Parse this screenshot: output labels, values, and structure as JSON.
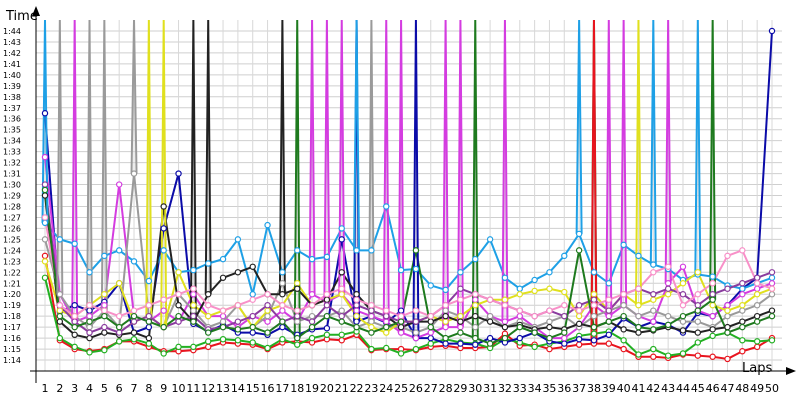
{
  "chart_data": {
    "type": "line",
    "ylabel": "Time",
    "xlabel": "Laps",
    "x": [
      1,
      2,
      3,
      4,
      5,
      6,
      7,
      8,
      9,
      10,
      11,
      12,
      13,
      14,
      15,
      16,
      17,
      18,
      19,
      20,
      21,
      22,
      23,
      24,
      25,
      26,
      27,
      28,
      29,
      30,
      31,
      32,
      33,
      34,
      35,
      36,
      37,
      38,
      39,
      40,
      41,
      42,
      43,
      44,
      45,
      46,
      47,
      48,
      49,
      50
    ],
    "xlim": [
      1,
      50
    ],
    "ylim": [
      73,
      105
    ],
    "ylim_labels": "1:13 to 1:45 (seconds as m:ss)",
    "y_ticks": [
      "1:14",
      "1:15",
      "1:16",
      "1:17",
      "1:18",
      "1:19",
      "1:20",
      "1:21",
      "1:22",
      "1:23",
      "1:24",
      "1:25",
      "1:26",
      "1:27",
      "1:28",
      "1:29",
      "1:30",
      "1:31",
      "1:32",
      "1:33",
      "1:34",
      "1:35",
      "1:36",
      "1:37",
      "1:38",
      "1:39",
      "1:40",
      "1:41",
      "1:42",
      "1:43",
      "1:44"
    ],
    "grid": true,
    "legend": "none",
    "series": [
      {
        "color": "#e8141e",
        "values": [
          83.5,
          75.8,
          75.0,
          74.8,
          75.0,
          75.7,
          75.7,
          75.2,
          74.8,
          74.8,
          74.9,
          75.2,
          75.6,
          75.5,
          75.4,
          75.0,
          75.6,
          75.7,
          75.6,
          75.9,
          75.8,
          76.3,
          74.9,
          75.0,
          75.0,
          74.9,
          75.2,
          75.3,
          75.1,
          75.1,
          75.2,
          76.4,
          75.3,
          75.4,
          75.0,
          75.2,
          75.4,
          75.5,
          75.5,
          75.0,
          74.3,
          74.3,
          74.2,
          74.5,
          74.4,
          74.3,
          74.1,
          74.8,
          75.2,
          76.0
        ]
      },
      {
        "color": "#22b022",
        "values": [
          81.5,
          76.0,
          75.2,
          74.7,
          74.9,
          75.7,
          75.9,
          75.5,
          74.6,
          75.2,
          75.2,
          75.7,
          75.9,
          75.8,
          75.6,
          75.1,
          75.9,
          75.4,
          76.0,
          76.3,
          76.3,
          76.6,
          75.0,
          75.1,
          74.6,
          75.0,
          75.5,
          75.9,
          75.6,
          75.5,
          75.1,
          75.9,
          75.6,
          75.2,
          75.5,
          75.7,
          76.2,
          76.4,
          76.6,
          75.8,
          74.5,
          75.0,
          74.4,
          74.6,
          75.6,
          76.2,
          76.5,
          75.8,
          75.7,
          75.8
        ]
      },
      {
        "color": "#0b0ba8",
        "values": [
          96.5,
          78.4,
          79.0,
          78.5,
          79.3,
          81.0,
          76.5,
          77.0,
          86.0,
          91.0,
          77.3,
          76.6,
          77.2,
          76.5,
          76.5,
          76.3,
          77.0,
          76.3,
          76.8,
          76.9,
          85.0,
          77.5,
          78.0,
          77.4,
          78.5,
          76.0,
          76.0,
          75.5,
          75.5,
          75.4,
          76.0,
          75.6,
          76.0,
          76.5,
          75.7,
          75.5,
          75.9,
          75.8,
          76.3,
          77.8,
          77.0,
          77.5,
          77.2,
          76.5,
          78.3,
          78.0,
          79.0,
          80.5,
          81.5,
          104.0
        ]
      },
      {
        "color": "#1ea0e6",
        "values": [
          86.5,
          85.0,
          84.6,
          82.0,
          83.5,
          84.0,
          83.0,
          81.2,
          84.0,
          82.0,
          82.2,
          82.8,
          83.2,
          85.0,
          80.0,
          86.3,
          82.0,
          84.0,
          83.2,
          83.4,
          86.0,
          84.0,
          84.0,
          88.0,
          82.2,
          82.3,
          80.8,
          80.4,
          82.0,
          83.2,
          85.0,
          81.5,
          80.5,
          81.3,
          82.0,
          83.5,
          85.5,
          82.0,
          81.0,
          84.5,
          83.5,
          82.7,
          82.3,
          81.3,
          81.8,
          81.6,
          80.8,
          80.5,
          81.0,
          81.5
        ]
      },
      {
        "color": "#d43ce0",
        "values": [
          92.5,
          80.0,
          77.5,
          78.0,
          79.0,
          90.0,
          78.0,
          77.5,
          78.5,
          77.5,
          80.0,
          78.0,
          78.0,
          77.0,
          78.0,
          77.5,
          78.5,
          77.5,
          80.0,
          79.3,
          80.0,
          78.5,
          78.0,
          77.5,
          76.5,
          76.0,
          76.5,
          77.0,
          77.0,
          79.5,
          78.0,
          77.5,
          78.0,
          77.0,
          76.0,
          76.0,
          77.0,
          79.0,
          78.0,
          79.0,
          78.0,
          77.5,
          81.0,
          82.5,
          78.5,
          78.0,
          79.0,
          80.0,
          80.5,
          81.0
        ]
      },
      {
        "color": "#9a9a9a",
        "values": [
          85.0,
          80.0,
          78.0,
          77.0,
          78.5,
          77.0,
          91.0,
          78.0,
          77.0,
          80.0,
          78.5,
          77.0,
          77.5,
          79.0,
          77.0,
          78.0,
          81.0,
          77.5,
          78.0,
          78.0,
          78.5,
          77.0,
          77.5,
          77.0,
          77.0,
          76.5,
          77.0,
          78.5,
          78.0,
          77.0,
          78.0,
          77.0,
          77.5,
          77.0,
          77.5,
          78.0,
          77.0,
          78.0,
          78.5,
          79.0,
          78.0,
          78.5,
          78.0,
          77.5,
          77.5,
          77.0,
          78.0,
          78.5,
          79.0,
          80.0
        ]
      },
      {
        "color": "#e0e01e",
        "values": [
          83.0,
          78.5,
          78.0,
          79.0,
          80.0,
          81.0,
          77.5,
          78.0,
          77.0,
          82.0,
          79.0,
          78.0,
          78.5,
          79.0,
          77.0,
          78.5,
          79.0,
          81.0,
          79.0,
          79.5,
          80.0,
          78.0,
          77.0,
          76.5,
          77.5,
          77.5,
          78.0,
          77.5,
          78.0,
          79.0,
          79.5,
          79.5,
          80.0,
          80.3,
          80.5,
          80.2,
          78.0,
          80.0,
          78.5,
          80.0,
          79.0,
          79.5,
          80.0,
          81.0,
          82.0,
          79.0,
          78.5,
          79.0,
          80.0,
          80.5
        ]
      },
      {
        "color": "#222222",
        "values": [
          89.0,
          77.5,
          76.3,
          76.0,
          76.5,
          76.3,
          76.5,
          76.0,
          88.0,
          79.0,
          77.5,
          80.0,
          81.5,
          82.0,
          82.5,
          80.0,
          80.0,
          80.5,
          79.0,
          79.5,
          82.0,
          80.0,
          78.5,
          78.0,
          77.0,
          77.5,
          77.5,
          78.0,
          77.5,
          78.0,
          77.5,
          77.0,
          77.2,
          76.8,
          77.0,
          76.8,
          77.3,
          77.0,
          77.5,
          76.8,
          76.5,
          76.7,
          77.0,
          76.7,
          76.5,
          76.8,
          77.0,
          77.5,
          78.0,
          78.5
        ]
      },
      {
        "color": "#8a3c9e",
        "values": [
          90.0,
          79.0,
          77.5,
          76.5,
          77.0,
          76.5,
          77.5,
          78.0,
          77.0,
          77.5,
          78.0,
          76.8,
          77.0,
          77.5,
          78.0,
          79.0,
          77.5,
          78.0,
          77.5,
          79.0,
          78.0,
          79.0,
          78.5,
          78.0,
          77.5,
          77.5,
          78.0,
          79.0,
          80.5,
          80.0,
          79.5,
          79.0,
          78.5,
          78.0,
          78.5,
          78.0,
          79.0,
          79.5,
          78.5,
          80.0,
          80.5,
          80.0,
          80.5,
          80.0,
          79.0,
          80.0,
          80.5,
          81.0,
          81.5,
          82.0
        ]
      },
      {
        "color": "#f890c8",
        "values": [
          87.0,
          79.0,
          78.0,
          79.0,
          78.5,
          78.0,
          78.5,
          79.0,
          79.5,
          80.0,
          80.5,
          79.0,
          78.5,
          79.0,
          79.5,
          80.0,
          79.0,
          78.5,
          79.0,
          80.0,
          80.5,
          79.5,
          79.0,
          78.5,
          78.0,
          78.5,
          78.0,
          79.0,
          79.5,
          80.0,
          79.5,
          79.0,
          78.5,
          78.0,
          78.5,
          79.0,
          78.5,
          79.0,
          79.5,
          80.0,
          80.5,
          82.0,
          82.5,
          79.0,
          80.0,
          81.0,
          83.5,
          84.0,
          81.0,
          80.5
        ]
      },
      {
        "color": "#1e7a1e",
        "values": [
          89.5,
          78.0,
          77.0,
          77.5,
          78.0,
          77.0,
          78.0,
          77.5,
          77.0,
          78.0,
          77.5,
          76.5,
          77.0,
          76.8,
          77.0,
          76.5,
          77.5,
          76.0,
          77.0,
          78.0,
          77.5,
          77.0,
          76.5,
          77.0,
          77.5,
          84.0,
          77.0,
          76.0,
          76.5,
          76.0,
          75.5,
          76.0,
          77.0,
          76.5,
          76.0,
          76.5,
          84.0,
          77.0,
          77.5,
          78.0,
          77.0,
          76.8,
          77.2,
          78.0,
          78.5,
          79.5,
          76.5,
          77.0,
          77.5,
          78.0
        ]
      }
    ],
    "spikes": [
      {
        "color": "#1ea0e6",
        "x": 1,
        "y": 105
      },
      {
        "color": "#9a9a9a",
        "x": 2,
        "y": 105
      },
      {
        "color": "#d43ce0",
        "x": 3,
        "y": 105
      },
      {
        "color": "#9a9a9a",
        "x": 4,
        "y": 105
      },
      {
        "color": "#9a9a9a",
        "x": 5,
        "y": 105
      },
      {
        "color": "#9a9a9a",
        "x": 7,
        "y": 105
      },
      {
        "color": "#e0e01e",
        "x": 8,
        "y": 105
      },
      {
        "color": "#e0e01e",
        "x": 9,
        "y": 105
      },
      {
        "color": "#222222",
        "x": 11,
        "y": 105
      },
      {
        "color": "#222222",
        "x": 12,
        "y": 105
      },
      {
        "color": "#222222",
        "x": 17,
        "y": 105
      },
      {
        "color": "#1e7a1e",
        "x": 18,
        "y": 105
      },
      {
        "color": "#d43ce0",
        "x": 19,
        "y": 105
      },
      {
        "color": "#d43ce0",
        "x": 20,
        "y": 105
      },
      {
        "color": "#d43ce0",
        "x": 21,
        "y": 105
      },
      {
        "color": "#0b0ba8",
        "x": 22,
        "y": 105
      },
      {
        "color": "#1ea0e6",
        "x": 22,
        "y": 105
      },
      {
        "color": "#9a9a9a",
        "x": 23,
        "y": 105
      },
      {
        "color": "#d43ce0",
        "x": 24,
        "y": 105
      },
      {
        "color": "#d43ce0",
        "x": 25,
        "y": 105
      },
      {
        "color": "#0b0ba8",
        "x": 26,
        "y": 105
      },
      {
        "color": "#d43ce0",
        "x": 28,
        "y": 105
      },
      {
        "color": "#d43ce0",
        "x": 29,
        "y": 105
      },
      {
        "color": "#1e7a1e",
        "x": 30,
        "y": 105
      },
      {
        "color": "#d43ce0",
        "x": 32,
        "y": 105
      },
      {
        "color": "#1ea0e6",
        "x": 37,
        "y": 105
      },
      {
        "color": "#1e7a1e",
        "x": 38,
        "y": 105
      },
      {
        "color": "#e8141e",
        "x": 38,
        "y": 105
      },
      {
        "color": "#d43ce0",
        "x": 39,
        "y": 105
      },
      {
        "color": "#d43ce0",
        "x": 40,
        "y": 105
      },
      {
        "color": "#e0e01e",
        "x": 41,
        "y": 105
      },
      {
        "color": "#1ea0e6",
        "x": 42,
        "y": 105
      },
      {
        "color": "#d43ce0",
        "x": 43,
        "y": 105
      },
      {
        "color": "#1ea0e6",
        "x": 45,
        "y": 105
      },
      {
        "color": "#1e7a1e",
        "x": 46,
        "y": 105
      }
    ]
  }
}
